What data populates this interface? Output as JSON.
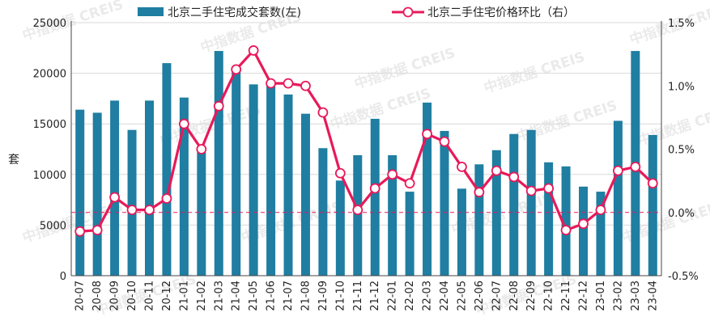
{
  "chart_data": {
    "type": "bar+line",
    "categories": [
      "20-07",
      "20-08",
      "20-09",
      "20-10",
      "20-11",
      "20-12",
      "21-01",
      "21-02",
      "21-03",
      "21-04",
      "21-05",
      "21-06",
      "21-07",
      "21-08",
      "21-09",
      "21-10",
      "21-11",
      "21-12",
      "22-01",
      "22-02",
      "22-03",
      "22-04",
      "22-05",
      "22-06",
      "22-07",
      "22-08",
      "22-09",
      "22-10",
      "22-11",
      "22-12",
      "23-01",
      "23-02",
      "23-03",
      "23-04"
    ],
    "series": [
      {
        "name": "北京二手住宅成交套数(左)",
        "type": "bar",
        "axis": "left",
        "color": "#1f7ea1",
        "values": [
          16400,
          16100,
          17300,
          14400,
          17300,
          21000,
          17600,
          12200,
          22200,
          20200,
          18900,
          18900,
          17900,
          16000,
          12600,
          9400,
          11900,
          15500,
          11900,
          8300,
          17100,
          14300,
          8600,
          11000,
          12400,
          14000,
          14400,
          11200,
          10800,
          8800,
          8300,
          15300,
          22200,
          13900
        ]
      },
      {
        "name": "北京二手住宅价格环比（右）",
        "type": "line",
        "axis": "right",
        "color": "#e8195a",
        "marker_fill": "#ffffff",
        "values": [
          -0.15,
          -0.14,
          0.12,
          0.02,
          0.02,
          0.11,
          0.7,
          0.5,
          0.84,
          1.13,
          1.28,
          1.02,
          1.02,
          1.0,
          0.79,
          0.31,
          0.02,
          0.19,
          0.3,
          0.23,
          0.62,
          0.56,
          0.36,
          0.16,
          0.33,
          0.28,
          0.17,
          0.19,
          -0.14,
          -0.09,
          0.02,
          0.33,
          0.36,
          0.23
        ]
      }
    ],
    "y_left": {
      "ylabel": "套",
      "ylim": [
        0,
        25000
      ],
      "ticks": [
        "0",
        "5000",
        "10000",
        "15000",
        "20000",
        "25000"
      ]
    },
    "y_right": {
      "ylim": [
        -0.5,
        1.5
      ],
      "ticks": [
        "-0.5%",
        "0.0%",
        "0.5%",
        "1.0%",
        "1.5%"
      ]
    },
    "zero_reference_line": {
      "axis": "right",
      "value": 0.0,
      "color": "#e8195a",
      "style": "dashed"
    },
    "legend": {
      "placement": "top"
    },
    "grid": "horizontal",
    "watermark": "中指数据 CREIS"
  }
}
